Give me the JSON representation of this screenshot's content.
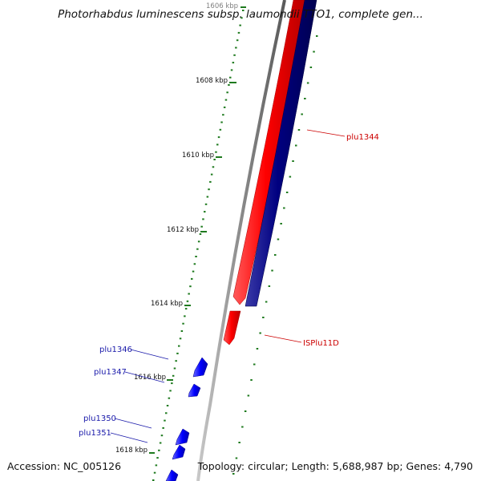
{
  "title": "Photorhabdus luminescens subsp. laumondii TTO1, complete gen...",
  "footer": {
    "accession": "Accession: NC_005126",
    "summary": "Topology: circular; Length: 5,688,987 bp; Genes: 4,790"
  },
  "ticks": [
    {
      "label": "1606 kbp"
    },
    {
      "label": "1608 kbp"
    },
    {
      "label": "1610 kbp"
    },
    {
      "label": "1612 kbp"
    },
    {
      "label": "1614 kbp"
    },
    {
      "label": "1616 kbp"
    },
    {
      "label": "1618 kbp"
    }
  ],
  "genes": [
    {
      "label": "plu1344",
      "strand": "forward"
    },
    {
      "label": "ISPlu11D",
      "strand": "forward"
    },
    {
      "label": "plu1346",
      "strand": "reverse"
    },
    {
      "label": "plu1347",
      "strand": "reverse"
    },
    {
      "label": "plu1350",
      "strand": "reverse"
    },
    {
      "label": "plu1351",
      "strand": "reverse"
    }
  ],
  "colors": {
    "forward_gene": "#ff0000",
    "reverse_track": "#000080",
    "reverse_gene": "#0000ff",
    "backbone": "#888888",
    "ticks": "#1e7a1e",
    "forward_label": "#cc0000",
    "reverse_label": "#1a1aaa"
  }
}
